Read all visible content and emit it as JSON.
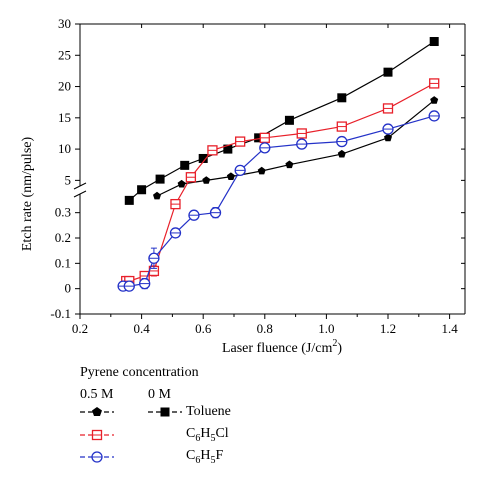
{
  "chart_data": {
    "type": "line",
    "xlabel": "Laser fluence",
    "xunit_base": "J/cm",
    "xunit_exp": "2",
    "xlabel_close": ")",
    "ylabel": "Etch rate (nm/pulse)",
    "xlim": [
      0.2,
      1.45
    ],
    "x_ticks": [
      "0.2",
      "0.4",
      "0.6",
      "0.8",
      "1.0",
      "1.2",
      "1.4"
    ],
    "y_broken_axis": true,
    "y_lower_lim": [
      -0.1,
      0.35
    ],
    "y_lower_ticks": [
      "-0.1",
      "0",
      "0.1",
      "0.2",
      "0.3"
    ],
    "y_upper_lim": [
      2.5,
      30
    ],
    "y_upper_ticks": [
      "5",
      "10",
      "15",
      "20",
      "25",
      "30"
    ],
    "series": [
      {
        "name": "Toluene",
        "concentration": "0.5 M",
        "marker": "pentagon",
        "color": "#000000",
        "x": [
          0.45,
          0.53,
          0.61,
          0.69,
          0.79,
          0.88,
          1.05,
          1.2,
          1.35
        ],
        "y": [
          2.5,
          4.4,
          5.0,
          5.6,
          6.5,
          7.5,
          9.2,
          11.8,
          17.8
        ]
      },
      {
        "name": "Toluene",
        "concentration": "0 M",
        "marker": "filled-square",
        "color": "#000000",
        "x": [
          0.36,
          0.4,
          0.46,
          0.54,
          0.6,
          0.68,
          0.78,
          0.88,
          1.05,
          1.2,
          1.35
        ],
        "y": [
          1.8,
          3.5,
          5.2,
          7.4,
          8.5,
          10.0,
          11.8,
          14.6,
          18.2,
          22.3,
          27.2
        ]
      },
      {
        "name": "C6H5Cl",
        "concentration": "0.5 M",
        "marker": "open-square",
        "color": "#e8202a",
        "x": [
          0.35,
          0.36,
          0.41,
          0.44,
          0.51,
          0.56,
          0.63,
          0.72,
          0.8,
          0.92,
          1.05,
          1.2,
          1.35
        ],
        "y": [
          0.03,
          0.03,
          0.05,
          0.07,
          1.2,
          5.5,
          9.8,
          11.2,
          11.8,
          12.5,
          13.6,
          16.5,
          20.5
        ],
        "y_error": [
          0,
          0.008,
          0.015,
          0.02,
          0,
          0.3,
          0.3,
          0.3,
          0.3,
          0.3,
          0.3,
          0.3,
          0.3
        ]
      },
      {
        "name": "C6H5F",
        "concentration": "0.5 M",
        "marker": "open-circle",
        "color": "#2432c8",
        "x": [
          0.34,
          0.36,
          0.41,
          0.44,
          0.51,
          0.57,
          0.64,
          0.72,
          0.8,
          0.92,
          1.05,
          1.2,
          1.35
        ],
        "y": [
          0.01,
          0.01,
          0.02,
          0.12,
          0.22,
          0.29,
          0.3,
          6.6,
          10.2,
          10.8,
          11.2,
          13.2,
          15.3
        ],
        "y_error": [
          0,
          0.015,
          0.02,
          0.04,
          0.015,
          0.015,
          0.02,
          0.3,
          0.3,
          0.3,
          0.3,
          0.3,
          0.3
        ]
      }
    ]
  },
  "legend": {
    "title": "Pyrene concentration",
    "col1_header": "0.5 M",
    "col2_header": "0 M",
    "rows": [
      {
        "base": "Toluene",
        "sub1": "",
        "mid": "",
        "sub2": "",
        "end": ""
      },
      {
        "base": "C",
        "sub1": "6",
        "mid": "H",
        "sub2": "5",
        "end": "Cl"
      },
      {
        "base": "C",
        "sub1": "6",
        "mid": "H",
        "sub2": "5",
        "end": "F"
      }
    ]
  }
}
